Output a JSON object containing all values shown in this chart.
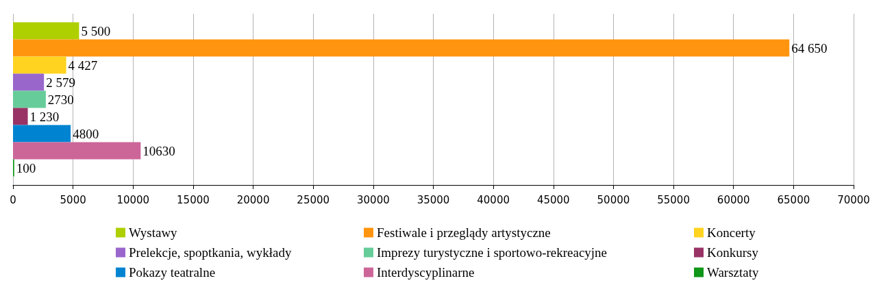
{
  "chart_data": {
    "type": "bar",
    "orientation": "horizontal",
    "categories": [
      null
    ],
    "xlim": [
      0,
      70000
    ],
    "xticks": [
      0,
      5000,
      10000,
      15000,
      20000,
      25000,
      30000,
      35000,
      40000,
      45000,
      50000,
      55000,
      60000,
      65000,
      70000
    ],
    "grid": "x",
    "legend": "bottom",
    "series": [
      {
        "name": "Wystawy",
        "color": "#aecf00",
        "values": [
          5500
        ],
        "value_labels": [
          "5 500"
        ]
      },
      {
        "name": "Festiwale i przeglądy artystyczne",
        "color": "#ff950e",
        "values": [
          64650
        ],
        "value_labels": [
          "64 650"
        ]
      },
      {
        "name": "Koncerty",
        "color": "#ffd320",
        "values": [
          4427
        ],
        "value_labels": [
          "4 427"
        ]
      },
      {
        "name": "Prelekcje, spoptkania, wykłady",
        "color": "#9966cc",
        "values": [
          2579
        ],
        "value_labels": [
          "2 579"
        ]
      },
      {
        "name": "Imprezy turystyczne i sportowo-rekreacyjne",
        "color": "#66cc99",
        "values": [
          2730
        ],
        "value_labels": [
          "2730"
        ]
      },
      {
        "name": "Konkursy",
        "color": "#993366",
        "values": [
          1230
        ],
        "value_labels": [
          "1 230"
        ]
      },
      {
        "name": "Pokazy teatralne",
        "color": "#0084d1",
        "values": [
          4800
        ],
        "value_labels": [
          "4800"
        ]
      },
      {
        "name": "Interdyscyplinarne",
        "color": "#cc6699",
        "values": [
          10630
        ],
        "value_labels": [
          "10630"
        ]
      },
      {
        "name": "Warsztaty",
        "color": "#109618",
        "values": [
          100
        ],
        "value_labels": [
          "100"
        ]
      }
    ]
  }
}
